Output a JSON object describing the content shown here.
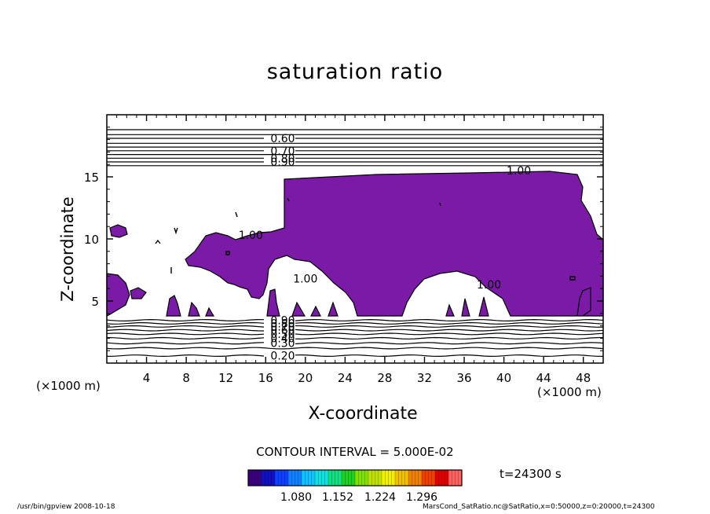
{
  "page": {
    "title": "saturation ratio",
    "xlabel": "X-coordinate",
    "ylabel": "Z-coordinate",
    "x_unit": "(×1000 m)",
    "x_unit_right": "(×1000 m)",
    "contour_interval": "CONTOUR INTERVAL = 5.000E-02",
    "time": "t=24300 s",
    "footer_left": "/usr/bin/gpview   2008-10-18",
    "footer_right": "MarsCond_SatRatio.nc@SatRatio,x=0:50000,z=0:20000,t=24300"
  },
  "colors": {
    "fill": "#7a1aa6",
    "line": "#000000",
    "colorbar": [
      "#3a0080",
      "#1010c0",
      "#1040ff",
      "#1080ff",
      "#10c0ff",
      "#10e0e0",
      "#10e080",
      "#20d020",
      "#80e000",
      "#c0e000",
      "#f0f000",
      "#f0c000",
      "#f08000",
      "#f04000",
      "#e00000",
      "#ff6060"
    ]
  },
  "chart_data": {
    "type": "contour",
    "title": "saturation ratio",
    "xlabel": "X-coordinate",
    "ylabel": "Z-coordinate",
    "xlim": [
      0,
      50
    ],
    "ylim": [
      0,
      20
    ],
    "x_ticks": [
      4,
      8,
      12,
      16,
      20,
      24,
      28,
      32,
      36,
      40,
      44,
      48
    ],
    "y_ticks": [
      5,
      10,
      15
    ],
    "x_tick_labels": [
      "4",
      "8",
      "12",
      "16",
      "20",
      "24",
      "28",
      "32",
      "36",
      "40",
      "44",
      "48"
    ],
    "y_tick_labels": [
      "5",
      "10",
      "15"
    ],
    "upper_contour_levels": [
      {
        "z": 18.8,
        "label": ""
      },
      {
        "z": 18.4,
        "label": ""
      },
      {
        "z": 18.1,
        "label": "0.60"
      },
      {
        "z": 17.7,
        "label": ""
      },
      {
        "z": 17.4,
        "label": ""
      },
      {
        "z": 17.1,
        "label": "0.70"
      },
      {
        "z": 16.8,
        "label": ""
      },
      {
        "z": 16.5,
        "label": "0.80"
      },
      {
        "z": 16.2,
        "label": "0.90"
      },
      {
        "z": 15.9,
        "label": ""
      }
    ],
    "lower_contour_levels": [
      {
        "z": 3.45,
        "label": "0.90"
      },
      {
        "z": 3.2,
        "label": "0.80"
      },
      {
        "z": 2.95,
        "label": "0.70"
      },
      {
        "z": 2.65,
        "label": "0.60"
      },
      {
        "z": 2.35,
        "label": "0.50"
      },
      {
        "z": 2.0,
        "label": "0.40"
      },
      {
        "z": 1.6,
        "label": "0.30"
      },
      {
        "z": 1.2,
        "label": ""
      },
      {
        "z": 0.6,
        "label": "0.20"
      }
    ],
    "saturated_region_labels": [
      {
        "x": 14.5,
        "z": 10.0,
        "text": "1.00"
      },
      {
        "x": 20.0,
        "z": 6.5,
        "text": "1.00"
      },
      {
        "x": 38.5,
        "z": 6.0,
        "text": "1.00"
      },
      {
        "x": 41.5,
        "z": 15.2,
        "text": "1.00"
      }
    ],
    "colorbar": {
      "tick_labels": [
        "1.080",
        "1.152",
        "1.224",
        "1.296"
      ]
    }
  }
}
